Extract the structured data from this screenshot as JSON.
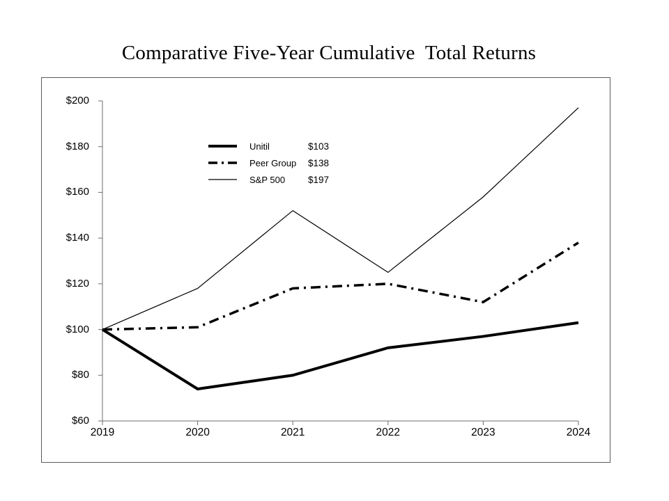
{
  "title": "Comparative Five-Year Cumulative  Total Returns",
  "colors": {
    "background": "#ffffff",
    "text": "#000000",
    "line": "#000000",
    "axis": "#6e6e6e",
    "frame_border": "#595959"
  },
  "chart_data": {
    "type": "line",
    "title": "Comparative Five-Year Cumulative Total Returns",
    "x": [
      2019,
      2020,
      2021,
      2022,
      2023,
      2024
    ],
    "x_tick_labels": [
      "2019",
      "2020",
      "2021",
      "2022",
      "2023",
      "2024"
    ],
    "y_ticks": [
      60,
      80,
      100,
      120,
      140,
      160,
      180,
      200
    ],
    "y_tick_labels": [
      "$60",
      "$80",
      "$100",
      "$120",
      "$140",
      "$160",
      "$180",
      "$200"
    ],
    "ylim": [
      60,
      200
    ],
    "xlabel": "",
    "ylabel": "",
    "grid": false,
    "legend_position": "upper-left-inside",
    "series": [
      {
        "name": "Unitil",
        "style": "thick-solid",
        "color": "#000000",
        "values": [
          100,
          74,
          80,
          92,
          97,
          103
        ],
        "final_label": "$103"
      },
      {
        "name": "Peer Group",
        "style": "dash-dot",
        "color": "#000000",
        "values": [
          100,
          101,
          118,
          120,
          112,
          138
        ],
        "final_label": "$138"
      },
      {
        "name": "S&P 500",
        "style": "thin-solid",
        "color": "#000000",
        "values": [
          100,
          118,
          152,
          125,
          158,
          197
        ],
        "final_label": "$197"
      }
    ]
  }
}
